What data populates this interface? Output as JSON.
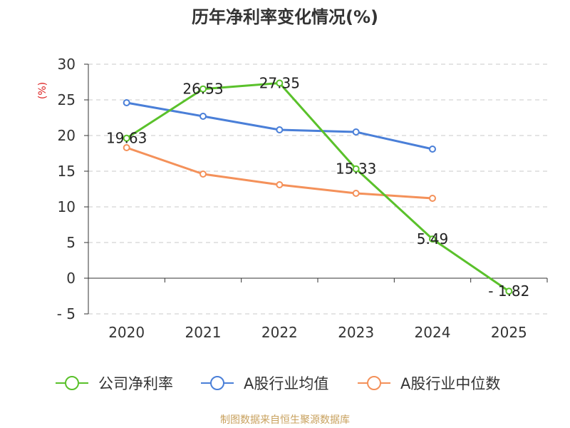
{
  "chart_data": {
    "type": "line",
    "title": "历年净利率变化情况(%)",
    "ylabel": "(%)",
    "xlabel": "",
    "categories": [
      "2020",
      "2021",
      "2022",
      "2023",
      "2024",
      "2025"
    ],
    "ylim": [
      -5,
      30
    ],
    "yticks": [
      30,
      25,
      20,
      15,
      10,
      5,
      0,
      -5
    ],
    "grid": true,
    "legend_position": "bottom",
    "series": [
      {
        "name": "公司净利率",
        "color": "#5ac12b",
        "values": [
          19.63,
          26.53,
          27.35,
          15.33,
          5.49,
          -1.82
        ],
        "labels": [
          "19.63",
          "26.53",
          "27.35",
          "15.33",
          "5.49",
          "-1.82"
        ]
      },
      {
        "name": "A股行业均值",
        "color": "#4a7fd8",
        "values": [
          24.6,
          22.7,
          20.8,
          20.5,
          18.1,
          null
        ]
      },
      {
        "name": "A股行业中位数",
        "color": "#f4915a",
        "values": [
          18.3,
          14.6,
          13.1,
          11.9,
          11.2,
          null
        ]
      }
    ],
    "source": "制图数据来自恒生聚源数据库"
  }
}
